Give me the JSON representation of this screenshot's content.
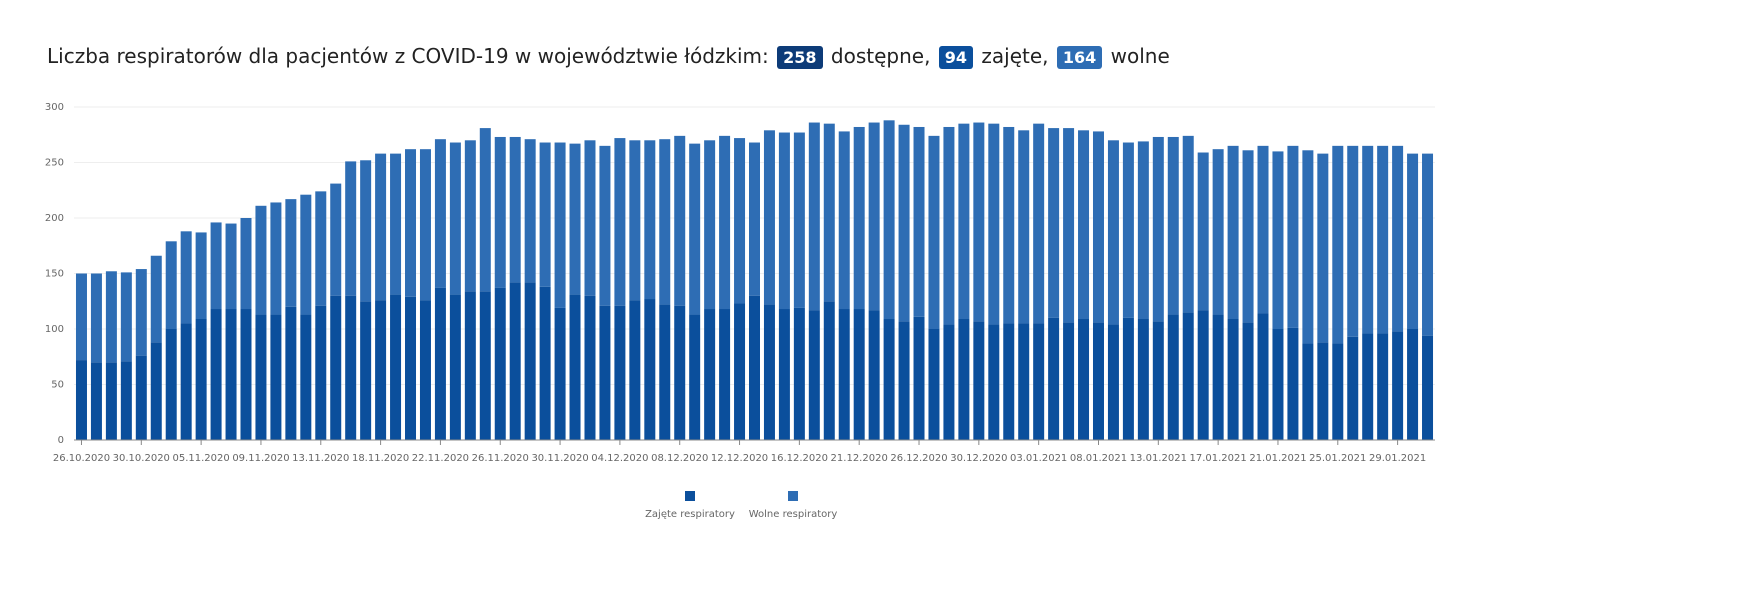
{
  "header": {
    "title": "Liczba respiratorów dla pacjentów z COVID-19 w województwie łódzkim:",
    "available": "258",
    "available_label": "dostępne,",
    "occupied": "94",
    "occupied_label": "zajęte,",
    "free": "164",
    "free_label": "wolne"
  },
  "chart_data": {
    "type": "stacked_bar",
    "categories": [
      "26.10.2020",
      null,
      null,
      null,
      "30.10.2020",
      null,
      null,
      null,
      "05.11.2020",
      null,
      null,
      null,
      "09.11.2020",
      null,
      null,
      null,
      "13.11.2020",
      null,
      null,
      null,
      "18.11.2020",
      null,
      null,
      null,
      "22.11.2020",
      null,
      null,
      null,
      "26.11.2020",
      null,
      null,
      null,
      "30.11.2020",
      null,
      null,
      null,
      "04.12.2020",
      null,
      null,
      null,
      "08.12.2020",
      null,
      null,
      null,
      "12.12.2020",
      null,
      null,
      null,
      "16.12.2020",
      null,
      null,
      null,
      "21.12.2020",
      null,
      null,
      null,
      "26.12.2020",
      null,
      null,
      null,
      "30.12.2020",
      null,
      null,
      null,
      "03.01.2021",
      null,
      null,
      null,
      "08.01.2021",
      null,
      null,
      null,
      "13.01.2021",
      null,
      null,
      null,
      "17.01.2021",
      null,
      null,
      null,
      "21.01.2021",
      null,
      null,
      null,
      "25.01.2021",
      null,
      null,
      null,
      "29.01.2021",
      null,
      null
    ],
    "series": [
      {
        "name": "Zajęte respiratory",
        "color": "#0b4f9c",
        "values": [
          72,
          70,
          70,
          71,
          76,
          88,
          100,
          105,
          109,
          118,
          118,
          118,
          113,
          113,
          120,
          113,
          121,
          130,
          130,
          125,
          126,
          131,
          129,
          126,
          137,
          131,
          134,
          134,
          137,
          142,
          142,
          138,
          119,
          131,
          130,
          121,
          121,
          126,
          127,
          122,
          121,
          113,
          118,
          118,
          123,
          130,
          122,
          118,
          119,
          117,
          125,
          118,
          118,
          117,
          109,
          107,
          111,
          100,
          104,
          109,
          107,
          104,
          105,
          105,
          105,
          110,
          106,
          109,
          106,
          104,
          110,
          109,
          107,
          113,
          115,
          117,
          113,
          109,
          106,
          114,
          100,
          101,
          87,
          88,
          87,
          93,
          96,
          96,
          98,
          100,
          94
        ]
      },
      {
        "name": "Wolne respiratory",
        "color": "#2e6db4",
        "values": [
          78,
          80,
          82,
          80,
          78,
          78,
          79,
          83,
          78,
          78,
          77,
          82,
          98,
          101,
          97,
          108,
          103,
          101,
          121,
          127,
          132,
          127,
          133,
          136,
          134,
          137,
          136,
          147,
          136,
          131,
          129,
          130,
          149,
          136,
          140,
          144,
          151,
          144,
          143,
          149,
          153,
          154,
          152,
          156,
          149,
          138,
          157,
          159,
          158,
          169,
          160,
          160,
          164,
          169,
          179,
          177,
          171,
          174,
          178,
          176,
          179,
          181,
          177,
          174,
          180,
          171,
          175,
          170,
          172,
          166,
          158,
          160,
          166,
          160,
          159,
          142,
          149,
          156,
          155,
          151,
          160,
          164,
          174,
          170,
          178,
          172,
          169,
          169,
          167,
          158,
          164
        ]
      }
    ],
    "ylim": [
      0,
      300
    ],
    "yticks": [
      0,
      50,
      100,
      150,
      200,
      250,
      300
    ],
    "grid": true,
    "legend": "bottom"
  }
}
